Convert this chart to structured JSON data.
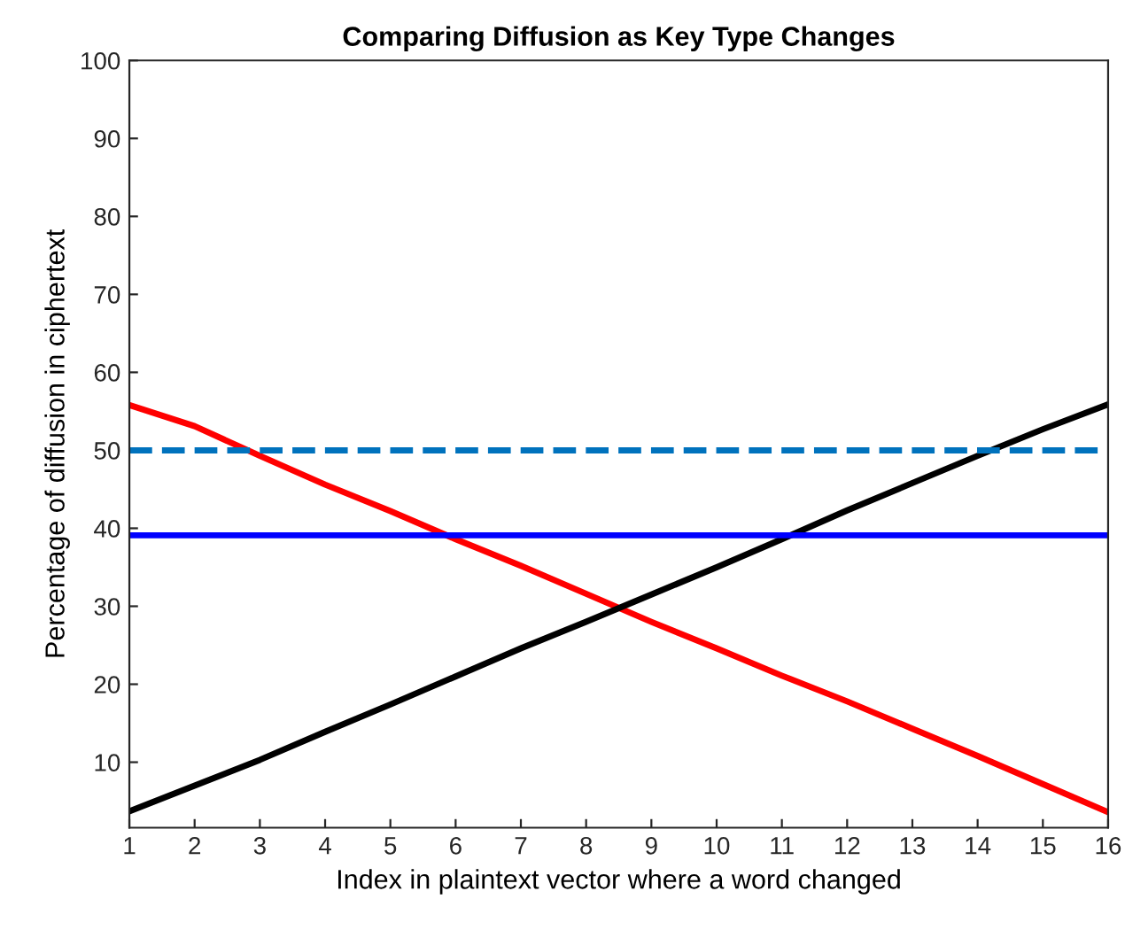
{
  "chart_data": {
    "type": "line",
    "title": "Comparing Diffusion as Key Type Changes",
    "xlabel": "Index in plaintext vector where a word changed",
    "ylabel": "Percentage of diffusion in ciphertext",
    "x": [
      1,
      2,
      3,
      4,
      5,
      6,
      7,
      8,
      9,
      10,
      11,
      12,
      13,
      14,
      15,
      16
    ],
    "series": [
      {
        "color": "#ff0000",
        "values": [
          55.8,
          53.1,
          49.3,
          45.6,
          42.2,
          38.6,
          35.2,
          31.6,
          28.0,
          24.6,
          21.1,
          17.8,
          14.3,
          10.8,
          7.2,
          3.6
        ]
      },
      {
        "color": "#000000",
        "values": [
          3.7,
          7.0,
          10.3,
          13.9,
          17.4,
          21.0,
          24.6,
          28.0,
          31.5,
          35.0,
          38.6,
          42.3,
          45.8,
          49.3,
          52.7,
          55.9
        ]
      }
    ],
    "ref_lines": [
      {
        "axis": "y",
        "value": 50,
        "color": "#0072bd",
        "line_style": "dashed"
      },
      {
        "axis": "y",
        "value": 39.1,
        "color": "#0000ff",
        "line_style": "solid"
      }
    ],
    "xlim": [
      1,
      16
    ],
    "xticks": [
      1,
      2,
      3,
      4,
      5,
      6,
      7,
      8,
      9,
      10,
      11,
      12,
      13,
      14,
      15,
      16
    ],
    "ylim": [
      1.6,
      100
    ],
    "yticks": [
      10,
      20,
      30,
      40,
      50,
      60,
      70,
      80,
      90,
      100
    ],
    "grid": false,
    "legend": false,
    "marker": "none",
    "line_style": "solid"
  }
}
